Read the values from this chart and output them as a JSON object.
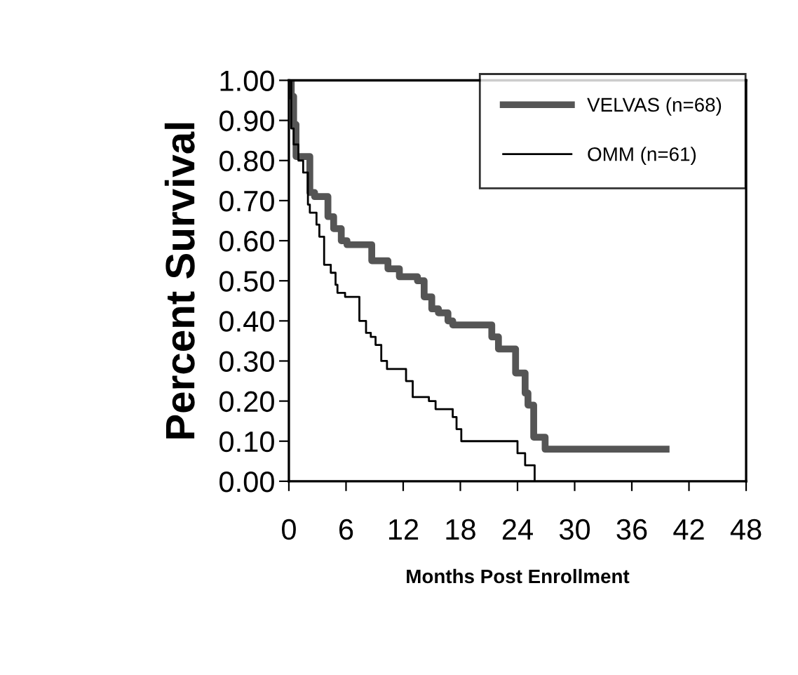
{
  "chart_data": {
    "type": "step",
    "xlabel": "Months Post Enrollment",
    "ylabel": "Percent Survival",
    "series": [
      {
        "name": "VELVAS (n=68)",
        "color": "#555555",
        "x": [
          0,
          0.25,
          0.5,
          0.75,
          2.2,
          2.7,
          4.1,
          4.7,
          5.5,
          6.1,
          8.7,
          10.4,
          11.6,
          13.5,
          14.2,
          15.0,
          15.7,
          16.7,
          17.2,
          21.3,
          22.0,
          23.8,
          24.8,
          25.1,
          25.7,
          26.9,
          39.6
        ],
        "values": [
          1.0,
          0.96,
          0.89,
          0.81,
          0.72,
          0.71,
          0.66,
          0.63,
          0.6,
          0.59,
          0.55,
          0.53,
          0.51,
          0.5,
          0.46,
          0.43,
          0.42,
          0.4,
          0.39,
          0.36,
          0.33,
          0.27,
          0.22,
          0.19,
          0.11,
          0.08,
          0.08
        ]
      },
      {
        "name": "OMM (n=61)",
        "color": "#000000",
        "x": [
          0,
          0.25,
          0.5,
          1.0,
          1.5,
          2.0,
          2.2,
          2.9,
          3.2,
          3.7,
          4.4,
          4.9,
          5.1,
          5.9,
          7.4,
          8.1,
          8.6,
          9.1,
          9.7,
          10.3,
          12.3,
          13.0,
          14.7,
          15.4,
          17.2,
          17.6,
          18.1,
          24.0,
          24.8,
          25.8
        ],
        "values": [
          1.0,
          0.88,
          0.84,
          0.8,
          0.77,
          0.69,
          0.67,
          0.64,
          0.61,
          0.54,
          0.52,
          0.49,
          0.47,
          0.46,
          0.4,
          0.37,
          0.36,
          0.34,
          0.3,
          0.28,
          0.25,
          0.21,
          0.2,
          0.18,
          0.16,
          0.13,
          0.1,
          0.07,
          0.04,
          0.0
        ]
      }
    ],
    "xlim": [
      0,
      48
    ],
    "xticks": [
      0,
      6,
      12,
      18,
      24,
      30,
      36,
      42,
      48
    ],
    "ylim": [
      0,
      1
    ],
    "yticks": [
      {
        "value": 0,
        "label": "0.00"
      },
      {
        "value": 0.1,
        "label": "0.10"
      },
      {
        "value": 0.2,
        "label": "0.20"
      },
      {
        "value": 0.3,
        "label": "0.30"
      },
      {
        "value": 0.4,
        "label": "0.40"
      },
      {
        "value": 0.5,
        "label": "0.50"
      },
      {
        "value": 0.6,
        "label": "0.60"
      },
      {
        "value": 0.7,
        "label": "0.70"
      },
      {
        "value": 0.8,
        "label": "0.80"
      },
      {
        "value": 0.9,
        "label": "0.90"
      },
      {
        "value": 1,
        "label": "1.00"
      }
    ],
    "legend": "top right",
    "grid": false
  }
}
